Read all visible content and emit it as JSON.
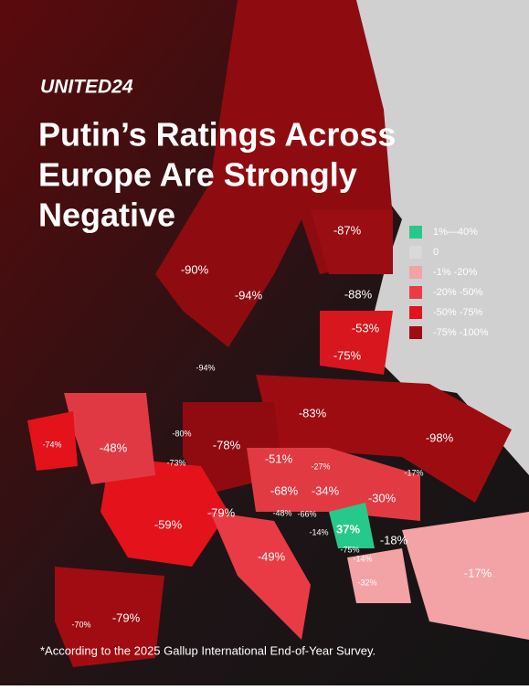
{
  "brand": "UNITED24",
  "title": [
    "Putin’s Ratings Across",
    "Europe Are Strongly",
    "Negative"
  ],
  "legend": [
    {
      "label": "1%—40%",
      "color": "#27c98a"
    },
    {
      "label": "0",
      "color": "#d9d9d9"
    },
    {
      "label": "-1% -20%",
      "color": "#f3a2a6"
    },
    {
      "label": "-20% -50%",
      "color": "#ea3c46"
    },
    {
      "label": "-50% -75%",
      "color": "#e4121b"
    },
    {
      "label": "-75% -100%",
      "color": "#a10c12"
    }
  ],
  "regions": [
    "-87%",
    "-90%",
    "-94%",
    "-88%",
    "-53%",
    "-75%",
    "-94%",
    "-83%",
    "-98%",
    "-80%",
    "-74%",
    "-48%",
    "-73%",
    "-78%",
    "-51%",
    "-27%",
    "-17%",
    "-68%",
    "-34%",
    "-30%",
    "-79%",
    "-48%",
    "-66%",
    "37%",
    "-14%",
    "-18%",
    "-59%",
    "-49%",
    "-75%",
    "-14%",
    "-32%",
    "-17%",
    "-70%",
    "-79%"
  ],
  "footnote": "*According to the 2025 Gallup International End-of-Year Survey."
}
